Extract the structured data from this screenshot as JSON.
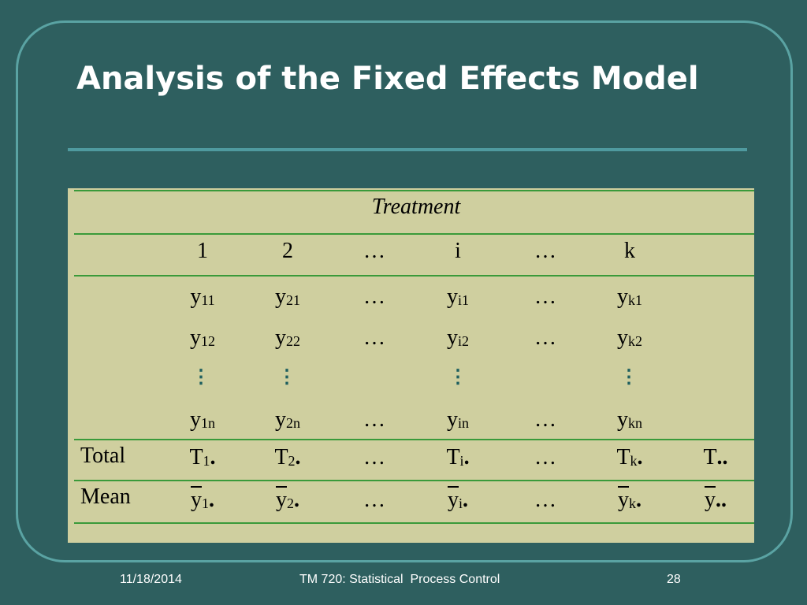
{
  "slide": {
    "title": "Analysis of the Fixed Effects Model",
    "date": "11/18/2014",
    "course": "TM 720: Statistical  Process Control",
    "page_number": "28"
  },
  "table": {
    "header": "Treatment",
    "columns": [
      "1",
      "2",
      "…",
      "i",
      "…",
      "k"
    ],
    "ellipsis": "…",
    "rows": [
      {
        "col1": "11",
        "col2": "21",
        "coli": "i1",
        "colk": "k1"
      },
      {
        "col1": "12",
        "col2": "22",
        "coli": "i2",
        "colk": "k2"
      },
      {
        "col1": "1n",
        "col2": "2n",
        "coli": "in",
        "colk": "kn"
      }
    ],
    "y": "y",
    "T": "T",
    "total_label": "Total",
    "mean_label": "Mean",
    "sub_1": "1",
    "sub_2": "2",
    "sub_i": "i",
    "sub_k": "k",
    "dot": ".",
    "dotdot": ".."
  }
}
